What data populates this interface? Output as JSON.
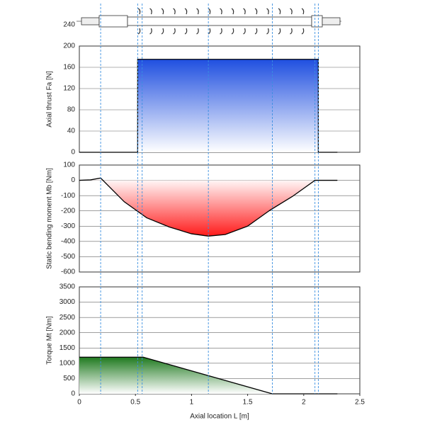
{
  "chart_data": [
    {
      "type": "line",
      "ylabel": "Axial thrust Fa [N]",
      "x": [
        0,
        0.52,
        0.52,
        2.13,
        2.13,
        2.3
      ],
      "values": [
        0,
        0,
        175,
        175,
        0,
        0
      ],
      "color": "#1f4fe0",
      "fill": "gradient-down",
      "xlim": [
        0,
        2.5
      ],
      "ylim": [
        0,
        200
      ],
      "yticks": [
        0,
        40,
        80,
        120,
        160,
        200,
        240
      ],
      "grid": true
    },
    {
      "type": "line",
      "ylabel": "Static bending moment Mb [Nm]",
      "x": [
        0,
        0.1,
        0.19,
        0.4,
        0.6,
        0.8,
        1.0,
        1.15,
        1.3,
        1.5,
        1.7,
        1.9,
        2.1,
        2.3
      ],
      "values": [
        0,
        3,
        15,
        -140,
        -245,
        -305,
        -350,
        -365,
        -355,
        -300,
        -195,
        -105,
        0,
        0
      ],
      "color": "#ff1a1a",
      "fill": "gradient-up",
      "xlim": [
        0,
        2.5
      ],
      "ylim": [
        -600,
        100
      ],
      "yticks": [
        -600,
        -500,
        -400,
        -300,
        -200,
        -100,
        0,
        100
      ],
      "grid": true
    },
    {
      "type": "line",
      "ylabel": "Torque Mt [Nm]",
      "x": [
        0,
        0.57,
        1.72,
        2.3
      ],
      "values": [
        1200,
        1200,
        0,
        0
      ],
      "color": "#1f7a1f",
      "fill": "gradient-down",
      "xlim": [
        0,
        2.5
      ],
      "ylim": [
        0,
        3500
      ],
      "yticks": [
        0,
        500,
        1000,
        1500,
        2000,
        2500,
        3000,
        3500
      ],
      "grid": true,
      "xticks": [
        0,
        0.5,
        1,
        1.5,
        2,
        2.5
      ],
      "xlabel": "Axial location L [m]"
    }
  ],
  "guides": [
    0.19,
    0.52,
    0.56,
    1.15,
    1.72,
    2.1,
    2.13
  ]
}
